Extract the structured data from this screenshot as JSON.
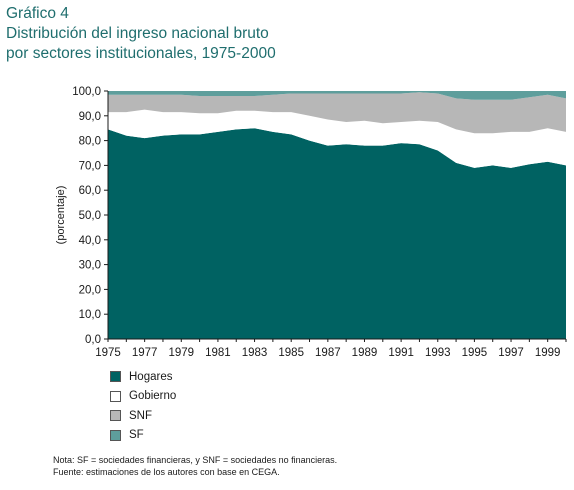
{
  "header": {
    "title_line1": "Gráfico 4",
    "title_line2": "Distribución del ingreso nacional bruto",
    "title_line3": "por sectores institucionales, 1975-2000"
  },
  "colors": {
    "hogares": "#006262",
    "gobierno": "#ffffff",
    "snf": "#b7b7b7",
    "sf": "#5e9e9c"
  },
  "chart_data": {
    "type": "area",
    "stacked": true,
    "ylabel": "(porcentaje)",
    "ylim": [
      0,
      100
    ],
    "y_ticks": [
      "0,0",
      "10,0",
      "20,0",
      "30,0",
      "40,0",
      "50,0",
      "60,0",
      "70,0",
      "80,0",
      "90,0",
      "100,0"
    ],
    "x_ticks": [
      "1975",
      "1977",
      "1979",
      "1981",
      "1983",
      "1985",
      "1987",
      "1989",
      "1991",
      "1993",
      "1995",
      "1997",
      "1999"
    ],
    "x": [
      1975,
      1976,
      1977,
      1978,
      1979,
      1980,
      1981,
      1982,
      1983,
      1984,
      1985,
      1986,
      1987,
      1988,
      1989,
      1990,
      1991,
      1992,
      1993,
      1994,
      1995,
      1996,
      1997,
      1998,
      1999,
      2000
    ],
    "series": [
      {
        "name": "Hogares",
        "values": [
          84.5,
          82.0,
          81.0,
          82.0,
          82.5,
          82.5,
          83.5,
          84.5,
          85.0,
          83.5,
          82.5,
          80.0,
          78.0,
          78.5,
          78.0,
          78.0,
          79.0,
          78.5,
          76.0,
          71.0,
          69.0,
          70.0,
          69.0,
          70.5,
          71.5,
          70.0
        ]
      },
      {
        "name": "Gobierno",
        "values": [
          7.0,
          9.5,
          11.5,
          9.5,
          9.0,
          8.5,
          7.5,
          7.5,
          7.0,
          8.0,
          9.0,
          10.0,
          10.5,
          9.0,
          10.0,
          9.0,
          8.5,
          9.5,
          11.5,
          13.5,
          14.0,
          13.0,
          14.5,
          13.0,
          13.5,
          13.5
        ]
      },
      {
        "name": "SNF",
        "values": [
          7.0,
          7.0,
          6.0,
          7.0,
          7.0,
          7.0,
          7.0,
          6.0,
          6.0,
          7.0,
          7.5,
          9.0,
          10.5,
          11.5,
          11.0,
          12.0,
          11.5,
          11.5,
          11.5,
          12.5,
          13.5,
          13.5,
          13.0,
          14.0,
          13.5,
          13.5
        ]
      },
      {
        "name": "SF",
        "values": [
          1.5,
          1.5,
          1.5,
          1.5,
          1.5,
          2.0,
          2.0,
          2.0,
          2.0,
          1.5,
          1.0,
          1.0,
          1.0,
          1.0,
          1.0,
          1.0,
          1.0,
          0.5,
          1.0,
          3.0,
          3.5,
          3.5,
          3.5,
          2.5,
          1.5,
          3.0
        ]
      }
    ]
  },
  "legend": {
    "items": [
      {
        "label": "Hogares"
      },
      {
        "label": "Gobierno"
      },
      {
        "label": "SNF"
      },
      {
        "label": "SF"
      }
    ]
  },
  "notes": {
    "note": "Nota: SF = sociedades financieras, y SNF = sociedades no financieras.",
    "source": "Fuente: estimaciones de los autores con base en CEGA."
  }
}
